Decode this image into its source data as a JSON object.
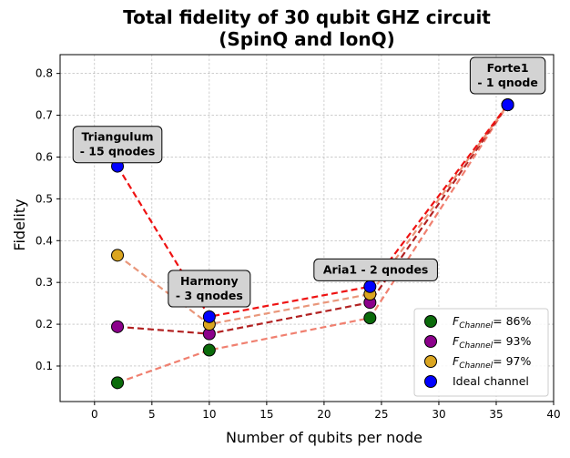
{
  "chart_data": {
    "type": "scatter",
    "title": "Total fidelity of 30 qubit GHZ circuit",
    "subtitle": "(SpinQ and IonQ)",
    "xlabel": "Number of qubits per node",
    "ylabel": "Fidelity",
    "xlim": [
      -3,
      40
    ],
    "ylim": [
      0.015,
      0.845
    ],
    "x_ticks": [
      0,
      5,
      10,
      15,
      20,
      25,
      30,
      35,
      40
    ],
    "y_ticks": [
      0.1,
      0.2,
      0.3,
      0.4,
      0.5,
      0.6,
      0.7,
      0.8
    ],
    "grid": true,
    "legend_position": "lower-right",
    "series": [
      {
        "name_main": "F",
        "name_sub": "Channel",
        "name_value": "= 86%",
        "color": "#0b6b0b",
        "line_color": "#f08070",
        "x": [
          2,
          10,
          24,
          36
        ],
        "y": [
          0.06,
          0.138,
          0.215,
          0.725
        ]
      },
      {
        "name_main": "F",
        "name_sub": "Channel",
        "name_value": "= 93%",
        "color": "#8b008b",
        "line_color": "#b22222",
        "x": [
          2,
          10,
          24,
          36
        ],
        "y": [
          0.194,
          0.177,
          0.252,
          0.725
        ]
      },
      {
        "name_main": "F",
        "name_sub": "Channel",
        "name_value": "= 97%",
        "color": "#daa520",
        "line_color": "#e9967a",
        "x": [
          2,
          10,
          24,
          36
        ],
        "y": [
          0.365,
          0.2,
          0.272,
          0.725
        ]
      },
      {
        "name": "Ideal channel",
        "color": "#0000ff",
        "line_color": "#ee1111",
        "x": [
          2,
          10,
          24,
          36
        ],
        "y": [
          0.578,
          0.218,
          0.29,
          0.725
        ]
      }
    ],
    "annotations": [
      {
        "lines": [
          "Triangulum",
          "- 15 qnodes"
        ],
        "x": 2,
        "y": 0.63
      },
      {
        "lines": [
          "Harmony",
          "- 3 qnodes"
        ],
        "x": 10,
        "y": 0.285
      },
      {
        "lines": [
          "Aria1 - 2 qnodes"
        ],
        "x": 24.5,
        "y": 0.33
      },
      {
        "lines": [
          "Forte1",
          "- 1 qnode"
        ],
        "x": 36,
        "y": 0.795
      }
    ]
  }
}
